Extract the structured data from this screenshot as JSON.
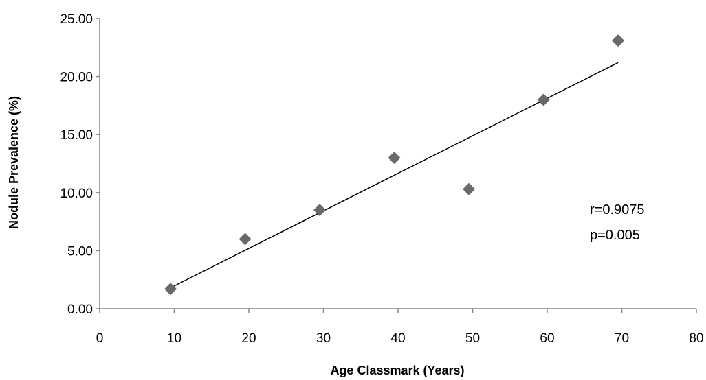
{
  "chart_data": {
    "type": "scatter",
    "title": "",
    "xlabel": "Age Classmark (Years)",
    "ylabel": "Nodule Prevalence (%)",
    "xlim": [
      0,
      80
    ],
    "ylim": [
      0,
      25
    ],
    "x_ticks": [
      "0",
      "10",
      "20",
      "30",
      "40",
      "50",
      "60",
      "70",
      "80"
    ],
    "y_ticks": [
      "0.00",
      "5.00",
      "10.00",
      "15.00",
      "20.00",
      "25.00"
    ],
    "grid": false,
    "legend": "none",
    "series": [
      {
        "marker": "diamond",
        "color": "#696969",
        "points": [
          {
            "x": 9.5,
            "y": 1.7
          },
          {
            "x": 19.5,
            "y": 6.0
          },
          {
            "x": 29.5,
            "y": 8.5
          },
          {
            "x": 39.5,
            "y": 13.0
          },
          {
            "x": 49.5,
            "y": 10.3
          },
          {
            "x": 59.5,
            "y": 18.0
          },
          {
            "x": 69.5,
            "y": 23.1
          }
        ]
      }
    ],
    "trendline": {
      "type": "linear",
      "color": "#000000",
      "x_range": [
        9.5,
        69.5
      ],
      "y_range": [
        1.8,
        21.2
      ]
    },
    "annotations": [
      "r=0.9075",
      "p=0.005"
    ]
  }
}
